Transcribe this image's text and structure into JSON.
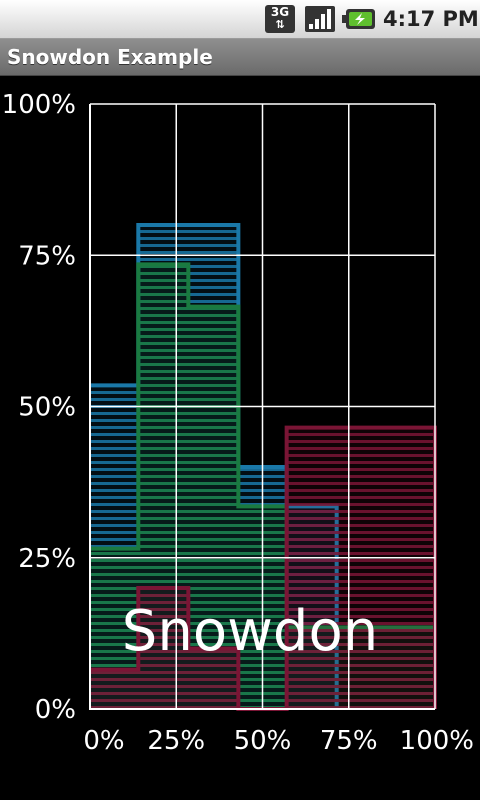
{
  "status_bar": {
    "network": "3G",
    "signal_icon": "signal-bars-icon",
    "battery_icon": "battery-charging-icon",
    "time": "4:17 PM"
  },
  "app": {
    "title": "Snowdon Example"
  },
  "chart_data": {
    "type": "area",
    "step": true,
    "x_ticks": [
      "0%",
      "25%",
      "50%",
      "75%",
      "100%"
    ],
    "y_ticks": [
      "0%",
      "25%",
      "50%",
      "75%",
      "100%"
    ],
    "xlim": [
      0,
      100
    ],
    "ylim": [
      0,
      100
    ],
    "grid": true,
    "watermark": "Snowdon",
    "series": [
      {
        "color": "#1a78a8",
        "points": [
          [
            0,
            53.5
          ],
          [
            14,
            53.5
          ],
          [
            14,
            80
          ],
          [
            43,
            80
          ],
          [
            43,
            40
          ],
          [
            57,
            40
          ],
          [
            57,
            33.5
          ],
          [
            71.5,
            33.5
          ],
          [
            71.5,
            0
          ]
        ]
      },
      {
        "color": "#1a7a40",
        "points": [
          [
            0,
            26.5
          ],
          [
            14,
            26.5
          ],
          [
            14,
            73.5
          ],
          [
            28.5,
            73.5
          ],
          [
            28.5,
            66.5
          ],
          [
            43,
            66.5
          ],
          [
            43,
            33.5
          ],
          [
            57,
            33.5
          ],
          [
            57,
            13.5
          ],
          [
            100,
            13.5
          ],
          [
            100,
            0
          ]
        ]
      },
      {
        "color": "#7a1535",
        "points": [
          [
            0,
            6.5
          ],
          [
            14,
            6.5
          ],
          [
            14,
            20
          ],
          [
            28.5,
            20
          ],
          [
            28.5,
            10
          ],
          [
            43,
            10
          ],
          [
            43,
            0
          ],
          [
            57,
            0
          ],
          [
            57,
            46.5
          ],
          [
            100,
            46.5
          ],
          [
            100,
            0
          ]
        ]
      }
    ]
  }
}
